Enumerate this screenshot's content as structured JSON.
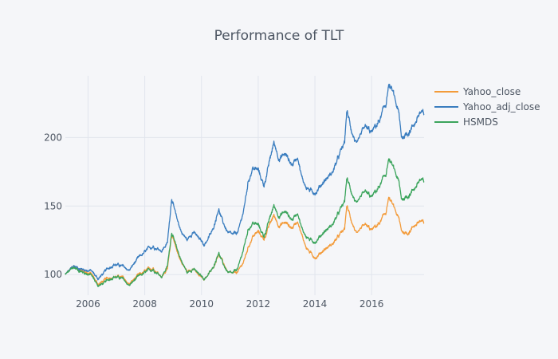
{
  "chart_data": {
    "type": "line",
    "title": "Performance of TLT",
    "xlabel": "",
    "ylabel": "",
    "xlim": [
      2005.2,
      2017.85
    ],
    "ylim": [
      85,
      245
    ],
    "x_ticks": [
      2006,
      2008,
      2010,
      2012,
      2014,
      2016
    ],
    "x_tick_labels": [
      "2006",
      "2008",
      "2010",
      "2012",
      "2014",
      "2016"
    ],
    "y_ticks": [
      100,
      150,
      200
    ],
    "y_tick_labels": [
      "100",
      "150",
      "200"
    ],
    "grid": true,
    "legend_position": "right",
    "series": [
      {
        "name": "Yahoo_close",
        "color": "#f39b3a",
        "points": [
          [
            2005.2,
            100
          ],
          [
            2005.5,
            106
          ],
          [
            2005.8,
            103
          ],
          [
            2006.1,
            101
          ],
          [
            2006.35,
            93
          ],
          [
            2006.6,
            96
          ],
          [
            2006.9,
            99
          ],
          [
            2007.2,
            98
          ],
          [
            2007.45,
            93
          ],
          [
            2007.7,
            98
          ],
          [
            2008.0,
            102
          ],
          [
            2008.3,
            105
          ],
          [
            2008.6,
            99
          ],
          [
            2008.8,
            104
          ],
          [
            2008.95,
            131
          ],
          [
            2009.1,
            118
          ],
          [
            2009.3,
            109
          ],
          [
            2009.5,
            102
          ],
          [
            2009.7,
            105
          ],
          [
            2009.9,
            99
          ],
          [
            2010.1,
            97
          ],
          [
            2010.4,
            104
          ],
          [
            2010.6,
            116
          ],
          [
            2010.75,
            109
          ],
          [
            2010.95,
            101
          ],
          [
            2011.1,
            100
          ],
          [
            2011.3,
            102
          ],
          [
            2011.5,
            110
          ],
          [
            2011.65,
            120
          ],
          [
            2011.8,
            128
          ],
          [
            2012.0,
            131
          ],
          [
            2012.2,
            126
          ],
          [
            2012.4,
            136
          ],
          [
            2012.55,
            143
          ],
          [
            2012.75,
            136
          ],
          [
            2012.95,
            138
          ],
          [
            2013.2,
            134
          ],
          [
            2013.4,
            140
          ],
          [
            2013.55,
            128
          ],
          [
            2013.7,
            120
          ],
          [
            2013.9,
            114
          ],
          [
            2014.05,
            113
          ],
          [
            2014.3,
            118
          ],
          [
            2014.6,
            122
          ],
          [
            2014.85,
            128
          ],
          [
            2015.05,
            133
          ],
          [
            2015.12,
            150
          ],
          [
            2015.3,
            139
          ],
          [
            2015.5,
            128
          ],
          [
            2015.75,
            136
          ],
          [
            2016.0,
            132
          ],
          [
            2016.3,
            138
          ],
          [
            2016.5,
            145
          ],
          [
            2016.6,
            156
          ],
          [
            2016.75,
            150
          ],
          [
            2016.95,
            141
          ],
          [
            2017.05,
            132
          ],
          [
            2017.25,
            130
          ],
          [
            2017.5,
            136
          ],
          [
            2017.7,
            139
          ],
          [
            2017.85,
            137
          ]
        ]
      },
      {
        "name": "Yahoo_adj_close",
        "color": "#3a7dbf",
        "points": [
          [
            2005.2,
            100
          ],
          [
            2005.5,
            106
          ],
          [
            2005.8,
            104
          ],
          [
            2006.1,
            103
          ],
          [
            2006.35,
            97
          ],
          [
            2006.6,
            102
          ],
          [
            2006.9,
            108
          ],
          [
            2007.2,
            106
          ],
          [
            2007.45,
            103
          ],
          [
            2007.7,
            110
          ],
          [
            2008.0,
            116
          ],
          [
            2008.3,
            121
          ],
          [
            2008.6,
            118
          ],
          [
            2008.8,
            123
          ],
          [
            2008.95,
            157
          ],
          [
            2009.1,
            142
          ],
          [
            2009.3,
            131
          ],
          [
            2009.5,
            125
          ],
          [
            2009.7,
            132
          ],
          [
            2009.9,
            126
          ],
          [
            2010.1,
            122
          ],
          [
            2010.4,
            132
          ],
          [
            2010.6,
            149
          ],
          [
            2010.75,
            138
          ],
          [
            2010.95,
            130
          ],
          [
            2011.1,
            128
          ],
          [
            2011.3,
            131
          ],
          [
            2011.5,
            148
          ],
          [
            2011.65,
            168
          ],
          [
            2011.8,
            178
          ],
          [
            2012.0,
            176
          ],
          [
            2012.2,
            165
          ],
          [
            2012.4,
            182
          ],
          [
            2012.55,
            196
          ],
          [
            2012.75,
            185
          ],
          [
            2012.95,
            188
          ],
          [
            2013.2,
            180
          ],
          [
            2013.4,
            187
          ],
          [
            2013.55,
            170
          ],
          [
            2013.7,
            164
          ],
          [
            2013.9,
            160
          ],
          [
            2014.05,
            161
          ],
          [
            2014.3,
            168
          ],
          [
            2014.6,
            174
          ],
          [
            2014.85,
            186
          ],
          [
            2015.05,
            196
          ],
          [
            2015.12,
            219
          ],
          [
            2015.3,
            205
          ],
          [
            2015.5,
            193
          ],
          [
            2015.75,
            207
          ],
          [
            2016.0,
            203
          ],
          [
            2016.3,
            213
          ],
          [
            2016.5,
            224
          ],
          [
            2016.6,
            238
          ],
          [
            2016.75,
            232
          ],
          [
            2016.95,
            218
          ],
          [
            2017.05,
            200
          ],
          [
            2017.25,
            203
          ],
          [
            2017.5,
            210
          ],
          [
            2017.7,
            218
          ],
          [
            2017.85,
            216
          ]
        ]
      },
      {
        "name": "HSMDS",
        "color": "#3ba45c",
        "points": [
          [
            2005.2,
            100
          ],
          [
            2005.5,
            105
          ],
          [
            2005.8,
            102
          ],
          [
            2006.1,
            100
          ],
          [
            2006.35,
            92
          ],
          [
            2006.6,
            94
          ],
          [
            2006.9,
            99
          ],
          [
            2007.2,
            97
          ],
          [
            2007.45,
            92
          ],
          [
            2007.7,
            97
          ],
          [
            2008.0,
            101
          ],
          [
            2008.3,
            104
          ],
          [
            2008.6,
            99
          ],
          [
            2008.8,
            106
          ],
          [
            2008.95,
            132
          ],
          [
            2009.1,
            120
          ],
          [
            2009.3,
            110
          ],
          [
            2009.5,
            101
          ],
          [
            2009.7,
            105
          ],
          [
            2009.9,
            100
          ],
          [
            2010.1,
            97
          ],
          [
            2010.4,
            104
          ],
          [
            2010.6,
            117
          ],
          [
            2010.75,
            108
          ],
          [
            2010.95,
            101
          ],
          [
            2011.1,
            100
          ],
          [
            2011.3,
            105
          ],
          [
            2011.5,
            120
          ],
          [
            2011.65,
            133
          ],
          [
            2011.8,
            138
          ],
          [
            2012.0,
            136
          ],
          [
            2012.2,
            128
          ],
          [
            2012.4,
            140
          ],
          [
            2012.55,
            150
          ],
          [
            2012.75,
            143
          ],
          [
            2012.95,
            146
          ],
          [
            2013.2,
            140
          ],
          [
            2013.4,
            146
          ],
          [
            2013.55,
            133
          ],
          [
            2013.7,
            128
          ],
          [
            2013.9,
            124
          ],
          [
            2014.05,
            125
          ],
          [
            2014.3,
            131
          ],
          [
            2014.6,
            136
          ],
          [
            2014.85,
            145
          ],
          [
            2015.05,
            153
          ],
          [
            2015.12,
            170
          ],
          [
            2015.3,
            160
          ],
          [
            2015.5,
            150
          ],
          [
            2015.75,
            160
          ],
          [
            2016.0,
            156
          ],
          [
            2016.3,
            165
          ],
          [
            2016.5,
            173
          ],
          [
            2016.6,
            184
          ],
          [
            2016.75,
            178
          ],
          [
            2016.95,
            168
          ],
          [
            2017.05,
            155
          ],
          [
            2017.25,
            157
          ],
          [
            2017.5,
            163
          ],
          [
            2017.7,
            169
          ],
          [
            2017.85,
            167
          ]
        ]
      }
    ]
  }
}
